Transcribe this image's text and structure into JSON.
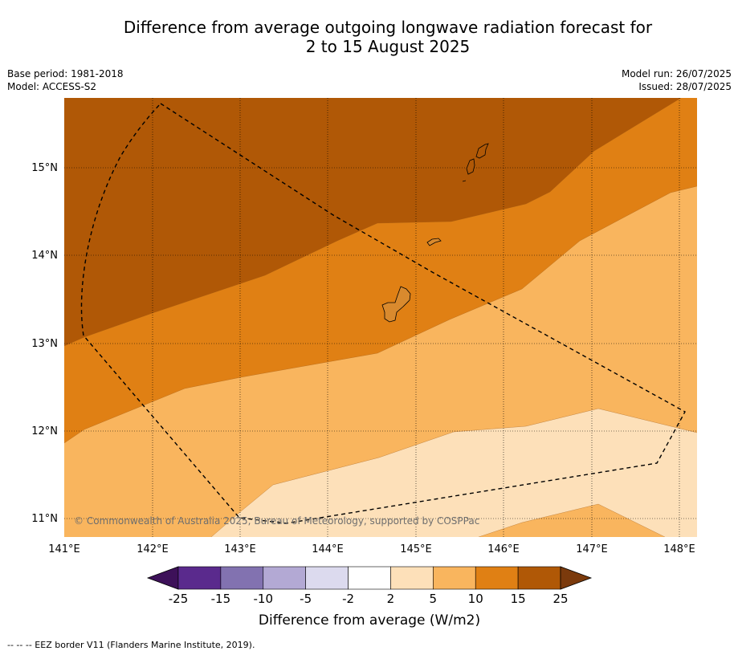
{
  "title_line1": "Difference from average outgoing longwave radiation forecast for",
  "title_line2": "2 to 15 August 2025",
  "meta_left": {
    "base_period": "Base period: 1981-2018",
    "model": "Model: ACCESS-S2"
  },
  "meta_right": {
    "model_run": "Model run: 26/07/2025",
    "issued": "Issued: 28/07/2025"
  },
  "map": {
    "lat_labels": [
      "15°N",
      "14°N",
      "13°N",
      "12°N",
      "11°N"
    ],
    "lon_labels": [
      "141°E",
      "142°E",
      "143°E",
      "144°E",
      "145°E",
      "146°E",
      "147°E",
      "148°E"
    ],
    "copyright": "© Commonwealth of Australia 2025, Bureau of Meteorology, supported by COSPPac",
    "features": [
      "eez-border",
      "guam",
      "rota",
      "tinian",
      "saipan"
    ]
  },
  "colorbar": {
    "title": "Difference from average (W/m2)",
    "tick_labels": [
      "-25",
      "-15",
      "-10",
      "-5",
      "-2",
      "2",
      "5",
      "10",
      "15",
      "25"
    ],
    "colors": [
      "#3d1159",
      "#5a2a8d",
      "#8272b0",
      "#b3a9d4",
      "#dcdaee",
      "#ffffff",
      "#fde0b9",
      "#f9b55e",
      "#e08014",
      "#b05806",
      "#7b3a0c"
    ]
  },
  "footnote": "--  --  -- EEZ border V11 (Flanders Marine Institute, 2019)."
}
